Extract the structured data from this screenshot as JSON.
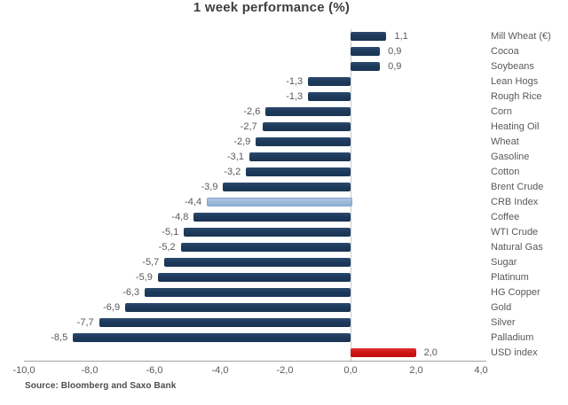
{
  "source_note": "Source: Bloomberg and Saxo Bank",
  "chart_data": {
    "type": "bar",
    "orientation": "horizontal",
    "title": "1 week performance (%)",
    "xlabel": "",
    "ylabel": "",
    "xlim": [
      -10,
      4
    ],
    "grid": "zero-line-only",
    "legend": "none",
    "palette": {
      "navy": "#1E3A5C",
      "light": "#9FB9DA",
      "red": "#CE1414"
    },
    "x_axis": {
      "tick_values": [
        -10,
        -8,
        -6,
        -4,
        -2,
        0,
        2,
        4
      ],
      "tick_labels": [
        "-10,0",
        "-8,0",
        "-6,0",
        "-4,0",
        "-2,0",
        "0,0",
        "2,0",
        "4,0"
      ]
    },
    "bars": [
      {
        "category": "Mill Wheat (€)",
        "value": 1.1,
        "label": "1,1",
        "color": "navy"
      },
      {
        "category": "Cocoa",
        "value": 0.9,
        "label": "0,9",
        "color": "navy"
      },
      {
        "category": "Soybeans",
        "value": 0.9,
        "label": "0,9",
        "color": "navy"
      },
      {
        "category": "Lean Hogs",
        "value": -1.3,
        "label": "-1,3",
        "color": "navy"
      },
      {
        "category": "Rough Rice",
        "value": -1.3,
        "label": "-1,3",
        "color": "navy"
      },
      {
        "category": "Corn",
        "value": -2.6,
        "label": "-2,6",
        "color": "navy"
      },
      {
        "category": "Heating Oil",
        "value": -2.7,
        "label": "-2,7",
        "color": "navy"
      },
      {
        "category": "Wheat",
        "value": -2.9,
        "label": "-2,9",
        "color": "navy"
      },
      {
        "category": "Gasoline",
        "value": -3.1,
        "label": "-3,1",
        "color": "navy"
      },
      {
        "category": "Cotton",
        "value": -3.2,
        "label": "-3,2",
        "color": "navy"
      },
      {
        "category": "Brent Crude",
        "value": -3.9,
        "label": "-3,9",
        "color": "navy"
      },
      {
        "category": "CRB Index",
        "value": -4.4,
        "label": "-4,4",
        "color": "light"
      },
      {
        "category": "Coffee",
        "value": -4.8,
        "label": "-4,8",
        "color": "navy"
      },
      {
        "category": "WTI Crude",
        "value": -5.1,
        "label": "-5,1",
        "color": "navy"
      },
      {
        "category": "Natural Gas",
        "value": -5.2,
        "label": "-5,2",
        "color": "navy"
      },
      {
        "category": "Sugar",
        "value": -5.7,
        "label": "-5,7",
        "color": "navy"
      },
      {
        "category": "Platinum",
        "value": -5.9,
        "label": "-5,9",
        "color": "navy"
      },
      {
        "category": "HG Copper",
        "value": -6.3,
        "label": "-6,3",
        "color": "navy"
      },
      {
        "category": "Gold",
        "value": -6.9,
        "label": "-6,9",
        "color": "navy"
      },
      {
        "category": "Silver",
        "value": -7.7,
        "label": "-7,7",
        "color": "navy"
      },
      {
        "category": "Palladium",
        "value": -8.5,
        "label": "-8,5",
        "color": "navy"
      },
      {
        "category": "USD index",
        "value": 2.0,
        "label": "2,0",
        "color": "red"
      }
    ]
  }
}
